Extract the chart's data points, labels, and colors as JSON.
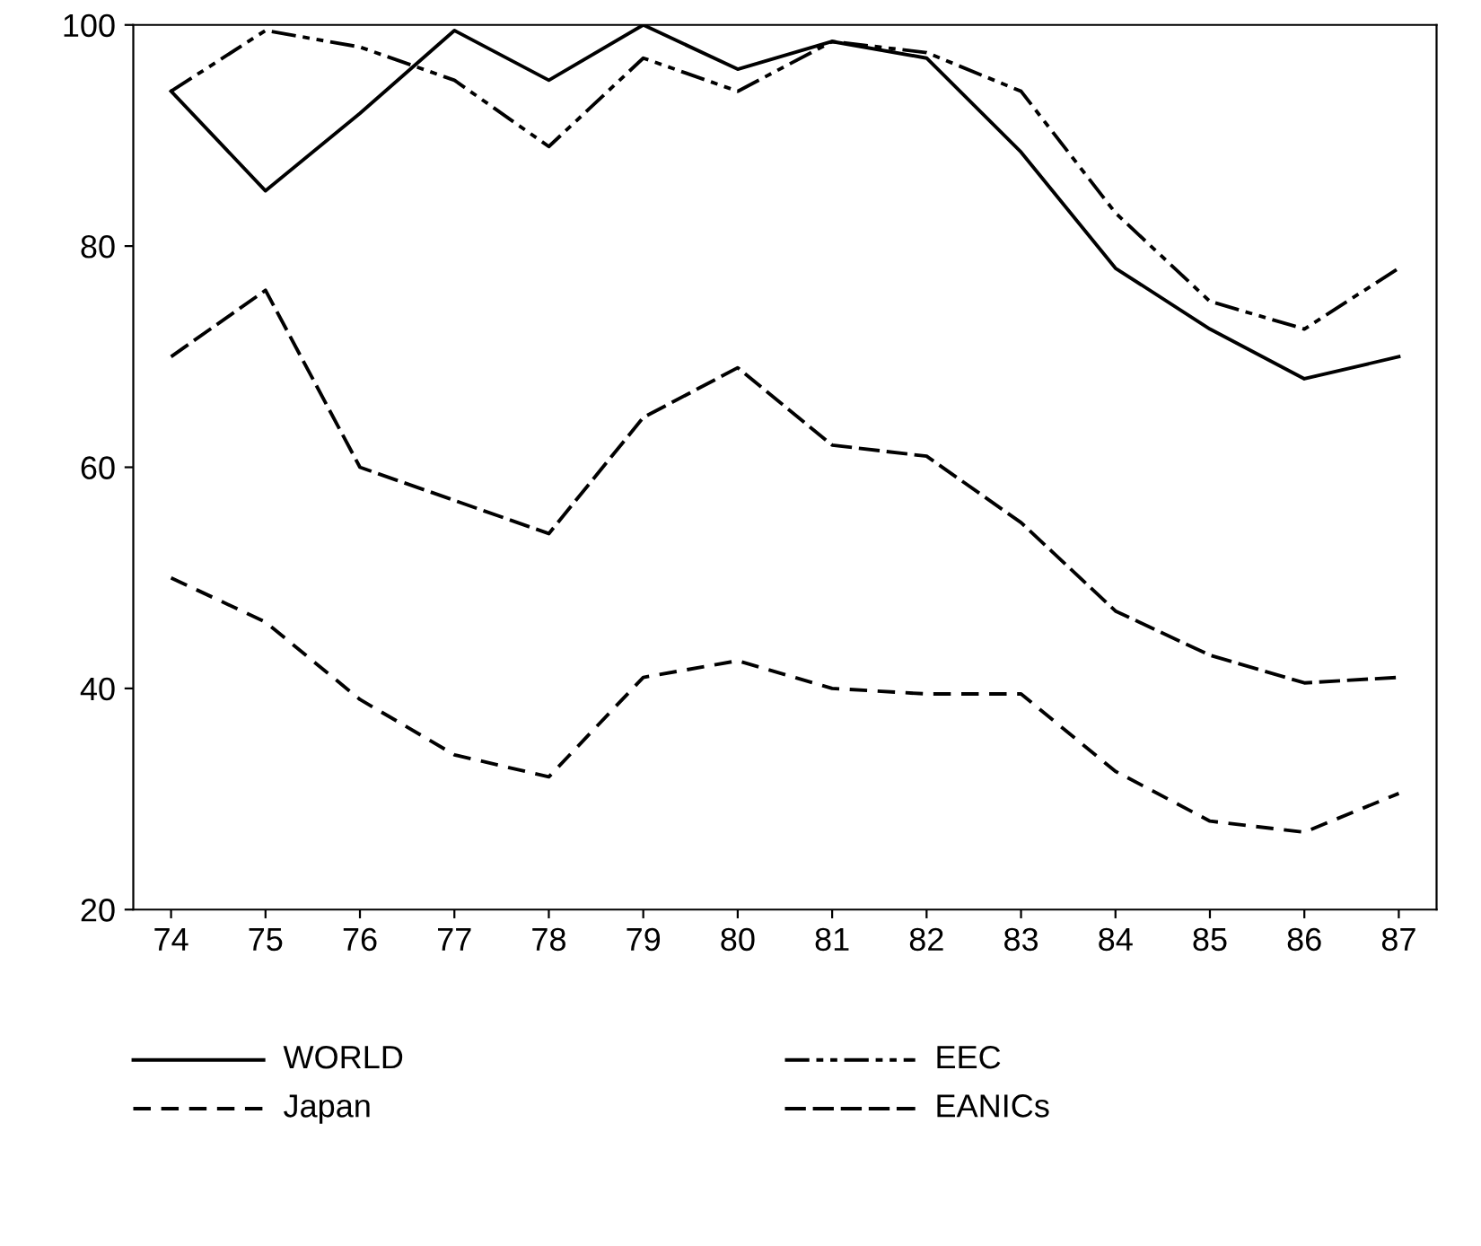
{
  "chart_data": {
    "type": "line",
    "categories": [
      "74",
      "75",
      "76",
      "77",
      "78",
      "79",
      "80",
      "81",
      "82",
      "83",
      "84",
      "85",
      "86",
      "87"
    ],
    "series": [
      {
        "name": "WORLD",
        "color": "#000000",
        "line_style": "solid",
        "values": [
          94,
          85,
          92,
          99.5,
          95,
          100,
          96,
          98.5,
          97,
          88.5,
          78,
          72.5,
          68,
          70
        ]
      },
      {
        "name": "Japan",
        "color": "#000000",
        "line_style": "dashed",
        "values": [
          50,
          46,
          39,
          34,
          32,
          41,
          42.5,
          40,
          39.5,
          39.5,
          32.5,
          28,
          27,
          30.5
        ]
      },
      {
        "name": "EEC",
        "color": "#000000",
        "line_style": "dashed",
        "values": [
          94,
          99.5,
          98,
          95,
          89,
          97,
          94,
          98.5,
          97.5,
          94,
          83,
          75,
          72.5,
          78
        ]
      },
      {
        "name": "EANICs",
        "color": "#000000",
        "line_style": "dashed",
        "values": [
          70,
          76,
          60,
          57,
          54,
          64.5,
          69,
          62,
          61,
          55,
          47,
          43,
          40.5,
          41
        ]
      }
    ],
    "ylim": [
      20,
      100
    ],
    "yticks": [
      20,
      40,
      60,
      80,
      100
    ],
    "grid": false,
    "legend": "bottom"
  }
}
